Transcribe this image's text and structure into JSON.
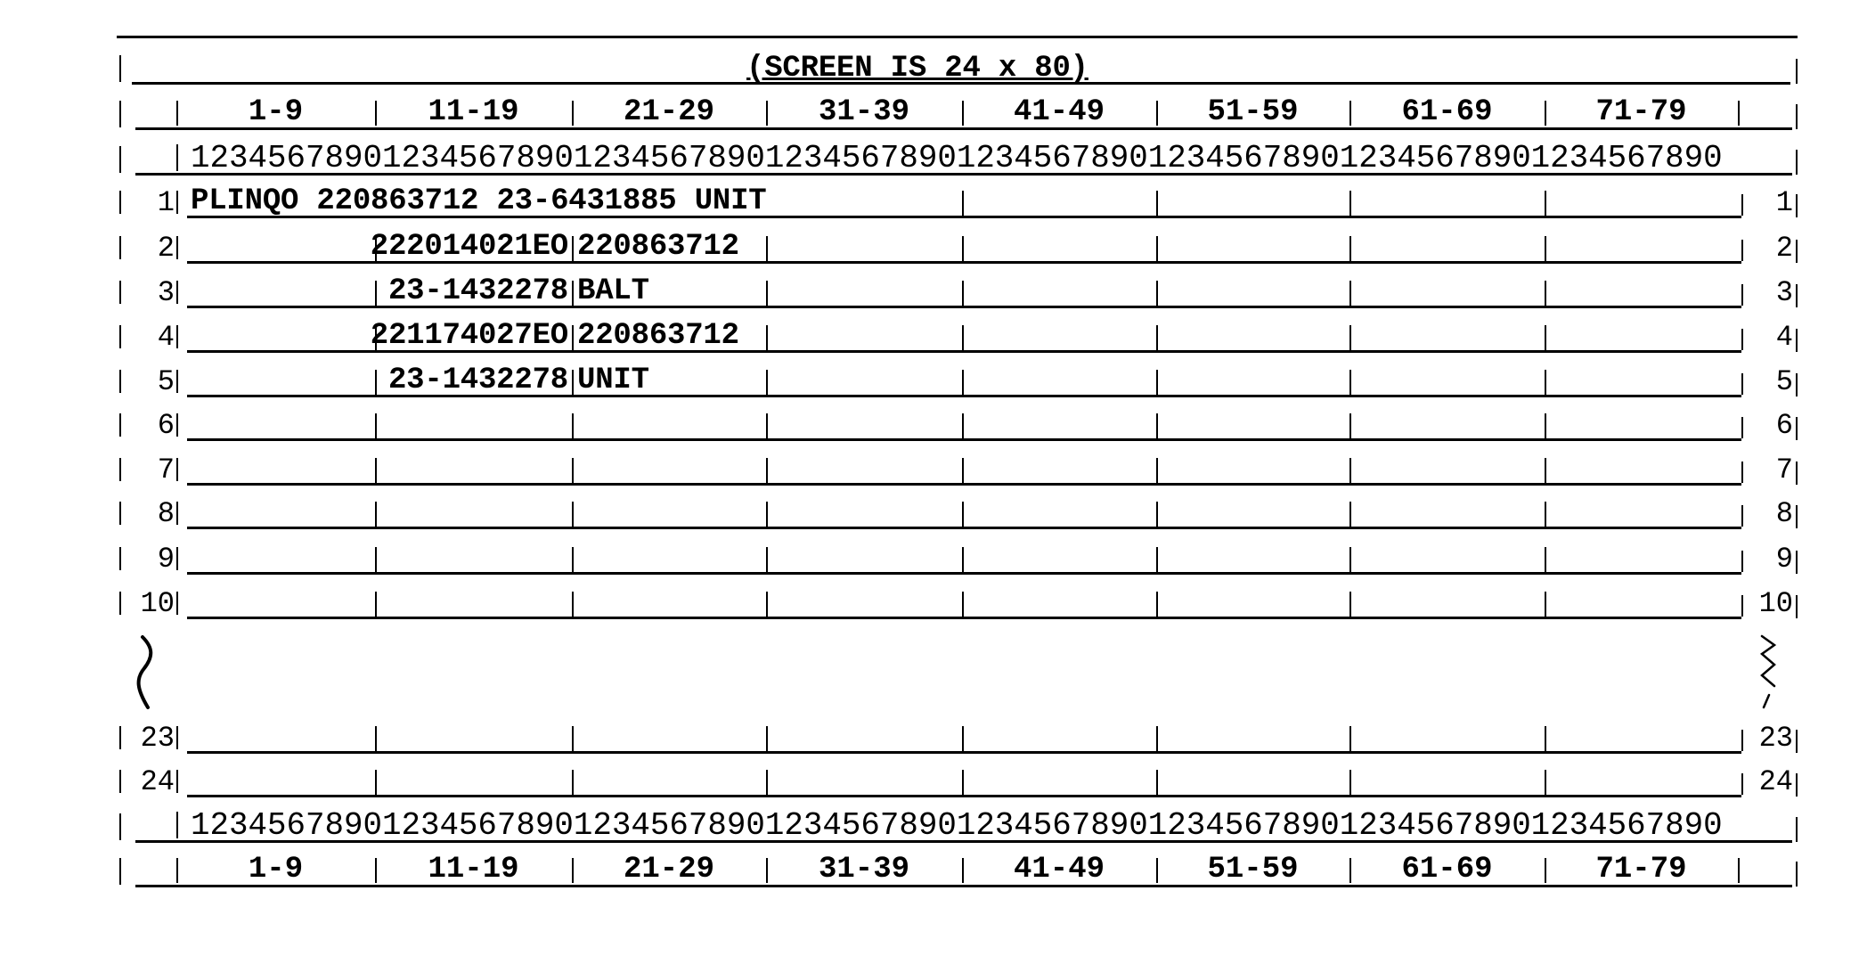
{
  "title": "(SCREEN IS 24 x 80)",
  "column_ranges": [
    "1-9",
    "11-19",
    "21-29",
    "31-39",
    "41-49",
    "51-59",
    "61-69",
    "71-79"
  ],
  "column_ruler": "12345678901234567890123456789012345678901234567890123456789012345678901234567890",
  "rows": [
    {
      "num": "1",
      "segments": [
        {
          "text": "PLINQO 220863712 23-6431885 UNIT",
          "align": "left",
          "col": 1
        }
      ]
    },
    {
      "num": "2",
      "segments": [
        {
          "text": "222014021EO",
          "align": "right",
          "col": 20
        },
        {
          "text": "220863712",
          "align": "left",
          "col": 21
        }
      ]
    },
    {
      "num": "3",
      "segments": [
        {
          "text": "23-1432278",
          "align": "right",
          "col": 20
        },
        {
          "text": "BALT",
          "align": "left",
          "col": 21
        }
      ]
    },
    {
      "num": "4",
      "segments": [
        {
          "text": "221174027EO",
          "align": "right",
          "col": 20
        },
        {
          "text": "220863712",
          "align": "left",
          "col": 21
        }
      ]
    },
    {
      "num": "5",
      "segments": [
        {
          "text": "23-1432278",
          "align": "right",
          "col": 20
        },
        {
          "text": "UNIT",
          "align": "left",
          "col": 21
        }
      ]
    },
    {
      "num": "6",
      "segments": []
    },
    {
      "num": "7",
      "segments": []
    },
    {
      "num": "8",
      "segments": []
    },
    {
      "num": "9",
      "segments": []
    },
    {
      "num": "10",
      "segments": []
    },
    {
      "num": "23",
      "segments": []
    },
    {
      "num": "24",
      "segments": []
    }
  ]
}
